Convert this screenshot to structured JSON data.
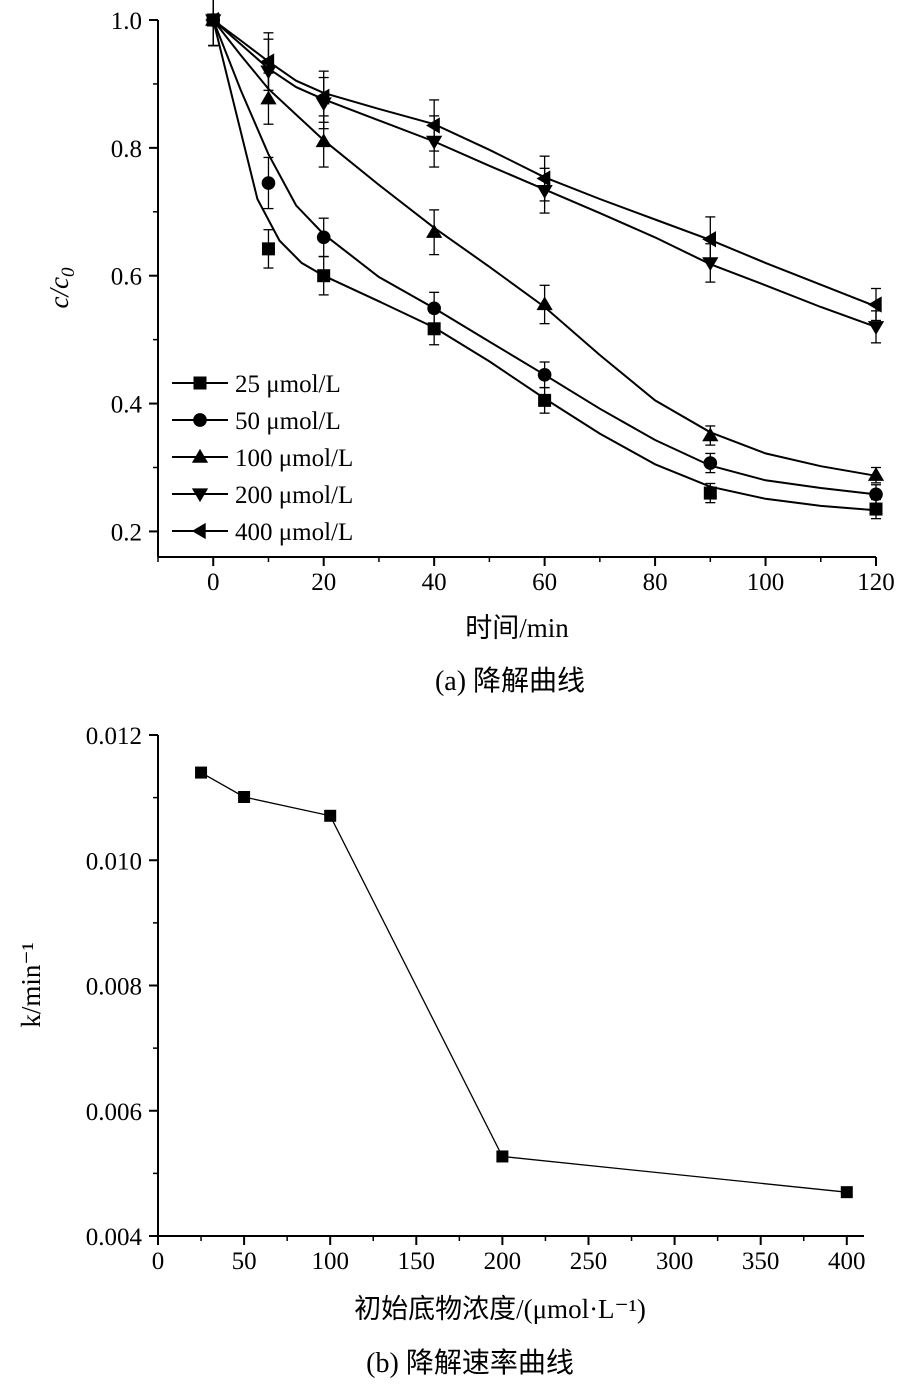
{
  "chart_data": [
    {
      "type": "scatter",
      "title": "",
      "caption": "(a) 降解曲线",
      "xlabel": "时间/min",
      "ylabel_main": "c/c",
      "ylabel_sub": "0",
      "xlim": [
        -10,
        120
      ],
      "ylim": [
        0.16,
        1.0
      ],
      "xticks": [
        0,
        20,
        40,
        60,
        80,
        100,
        120
      ],
      "yticks": [
        0.2,
        0.4,
        0.6,
        0.8,
        1.0
      ],
      "ytick_labels": [
        "0.2",
        "0.4",
        "0.6",
        "0.8",
        "1.0"
      ],
      "legend_position": "bottom-left",
      "x": [
        0,
        10,
        20,
        40,
        60,
        90,
        120
      ],
      "series": [
        {
          "name": "25 μmol/L",
          "marker": "square",
          "values": [
            1.0,
            0.642,
            0.6,
            0.517,
            0.405,
            0.26,
            0.235
          ],
          "errors": [
            0.04,
            0.03,
            0.03,
            0.025,
            0.02,
            0.015,
            0.015
          ],
          "fit": [
            [
              0,
              1.0
            ],
            [
              4,
              0.86
            ],
            [
              8,
              0.72
            ],
            [
              12,
              0.655
            ],
            [
              16,
              0.62
            ],
            [
              20,
              0.6
            ],
            [
              30,
              0.56
            ],
            [
              40,
              0.519
            ],
            [
              50,
              0.466
            ],
            [
              60,
              0.408
            ],
            [
              70,
              0.353
            ],
            [
              80,
              0.305
            ],
            [
              90,
              0.27
            ],
            [
              100,
              0.251
            ],
            [
              110,
              0.24
            ],
            [
              120,
              0.233
            ]
          ]
        },
        {
          "name": "50 μmol/L",
          "marker": "circle",
          "values": [
            1.0,
            0.745,
            0.66,
            0.549,
            0.445,
            0.307,
            0.258
          ],
          "errors": [
            0.04,
            0.04,
            0.03,
            0.025,
            0.02,
            0.015,
            0.015
          ],
          "fit": [
            [
              0,
              1.0
            ],
            [
              5,
              0.89
            ],
            [
              10,
              0.79
            ],
            [
              15,
              0.71
            ],
            [
              20,
              0.665
            ],
            [
              30,
              0.598
            ],
            [
              40,
              0.549
            ],
            [
              50,
              0.497
            ],
            [
              60,
              0.445
            ],
            [
              70,
              0.392
            ],
            [
              80,
              0.343
            ],
            [
              90,
              0.303
            ],
            [
              100,
              0.28
            ],
            [
              110,
              0.268
            ],
            [
              120,
              0.258
            ]
          ]
        },
        {
          "name": "100 μmol/L",
          "marker": "triangle-up",
          "values": [
            1.0,
            0.877,
            0.81,
            0.668,
            0.555,
            0.35,
            0.288
          ],
          "errors": [
            0.04,
            0.04,
            0.04,
            0.035,
            0.03,
            0.015,
            0.012
          ],
          "fit": [
            [
              0,
              1.0
            ],
            [
              5,
              0.945
            ],
            [
              10,
              0.892
            ],
            [
              15,
              0.852
            ],
            [
              20,
              0.812
            ],
            [
              30,
              0.742
            ],
            [
              40,
              0.675
            ],
            [
              50,
              0.614
            ],
            [
              60,
              0.551
            ],
            [
              70,
              0.476
            ],
            [
              80,
              0.405
            ],
            [
              90,
              0.355
            ],
            [
              100,
              0.322
            ],
            [
              110,
              0.302
            ],
            [
              120,
              0.287
            ]
          ]
        },
        {
          "name": "200 μmol/L",
          "marker": "triangle-down",
          "values": [
            1.0,
            0.92,
            0.87,
            0.81,
            0.733,
            0.62,
            0.52
          ],
          "errors": [
            0.04,
            0.05,
            0.04,
            0.04,
            0.035,
            0.03,
            0.025
          ],
          "fit": [
            [
              0,
              1.0
            ],
            [
              5,
              0.962
            ],
            [
              10,
              0.924
            ],
            [
              15,
              0.895
            ],
            [
              20,
              0.876
            ],
            [
              30,
              0.843
            ],
            [
              40,
              0.81
            ],
            [
              50,
              0.772
            ],
            [
              60,
              0.735
            ],
            [
              70,
              0.698
            ],
            [
              80,
              0.66
            ],
            [
              90,
              0.618
            ],
            [
              100,
              0.585
            ],
            [
              110,
              0.551
            ],
            [
              120,
              0.52
            ]
          ]
        },
        {
          "name": "400 μmol/L",
          "marker": "triangle-left",
          "values": [
            1.0,
            0.935,
            0.88,
            0.835,
            0.752,
            0.657,
            0.555
          ],
          "errors": [
            0.04,
            0.045,
            0.04,
            0.04,
            0.035,
            0.035,
            0.025
          ],
          "fit": [
            [
              0,
              1.0
            ],
            [
              5,
              0.968
            ],
            [
              10,
              0.935
            ],
            [
              15,
              0.905
            ],
            [
              20,
              0.886
            ],
            [
              30,
              0.861
            ],
            [
              40,
              0.837
            ],
            [
              50,
              0.797
            ],
            [
              60,
              0.754
            ],
            [
              70,
              0.72
            ],
            [
              80,
              0.688
            ],
            [
              90,
              0.656
            ],
            [
              100,
              0.62
            ],
            [
              110,
              0.586
            ],
            [
              120,
              0.552
            ]
          ]
        }
      ]
    },
    {
      "type": "line",
      "title": "",
      "caption": "(b) 降解速率曲线",
      "xlabel": "初始底物浓度/(μmol·L⁻¹)",
      "ylabel": "k/min⁻¹",
      "xlim": [
        0,
        410
      ],
      "ylim": [
        0.004,
        0.012
      ],
      "xticks": [
        0,
        50,
        100,
        150,
        200,
        250,
        300,
        350,
        400
      ],
      "yticks": [
        0.004,
        0.006,
        0.008,
        0.01,
        0.012
      ],
      "ytick_labels": [
        "0.004",
        "0.006",
        "0.008",
        "0.010",
        "0.012"
      ],
      "marker": "square",
      "x": [
        25,
        50,
        100,
        200,
        400
      ],
      "values": [
        0.0114,
        0.01101,
        0.01071,
        0.00527,
        0.0047
      ]
    }
  ]
}
